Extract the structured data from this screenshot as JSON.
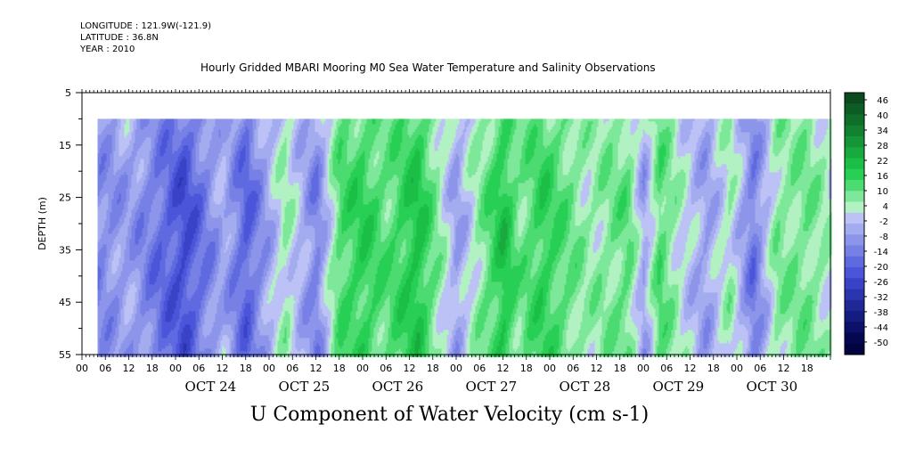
{
  "header": {
    "longitude": "LONGITUDE : 121.9W(-121.9)",
    "latitude": "LATITUDE : 36.8N",
    "year": "YEAR : 2010"
  },
  "chart_data": {
    "type": "heatmap",
    "title": "Hourly Gridded MBARI Mooring M0 Sea Water Temperature and Salinity Observations",
    "xlabel": "U Component of Water Velocity (cm s-1)",
    "ylabel": "DEPTH (m)",
    "ylim": [
      5,
      55
    ],
    "y_inverted": true,
    "y_ticks": [
      5,
      15,
      25,
      35,
      45,
      55
    ],
    "data_depth_range": [
      10,
      55
    ],
    "x_start": "2010-10-23 00:00",
    "x_end": "2010-10-30 23:00",
    "data_start": "2010-10-23 04:00",
    "x_hour_ticks": [
      "00",
      "06",
      "12",
      "18",
      "00",
      "06",
      "12",
      "18",
      "00",
      "06",
      "12",
      "18",
      "00",
      "06",
      "12",
      "18",
      "00",
      "06",
      "12",
      "18",
      "00",
      "06",
      "12",
      "18",
      "00",
      "06",
      "12",
      "18",
      "00",
      "06",
      "12",
      "18"
    ],
    "x_day_labels": [
      "OCT 24",
      "OCT 25",
      "OCT 26",
      "OCT 27",
      "OCT 28",
      "OCT 29",
      "OCT 30"
    ],
    "colorbar": {
      "labels": [
        "46",
        "40",
        "34",
        "28",
        "22",
        "16",
        "10",
        "4",
        "-2",
        "-8",
        "-14",
        "-20",
        "-26",
        "-32",
        "-38",
        "-44",
        "-50"
      ],
      "min": -50,
      "max": 52,
      "colors_high": [
        "#0a4a1e",
        "#0c5c24",
        "#0f6e2a",
        "#128231",
        "#159638",
        "#18aa3f",
        "#1cbf46",
        "#28cf55",
        "#4cdb70",
        "#7de89a",
        "#b2f2c2"
      ],
      "colors_low": [
        "#bcc2f5",
        "#a4acf0",
        "#8c95ea",
        "#7680e5",
        "#606ae0",
        "#4a55da",
        "#3a43c8",
        "#2c35b0",
        "#202898",
        "#151c80",
        "#0c1068",
        "#050850",
        "#020440"
      ]
    },
    "profile_times_h": [
      4,
      12,
      26,
      36,
      42,
      52,
      60,
      66,
      72,
      78,
      86,
      96,
      108,
      112,
      118,
      130,
      140,
      144,
      148,
      154,
      160,
      166,
      172,
      178,
      186,
      192
    ],
    "profile_u_cm_s": [
      -12,
      -8,
      -24,
      -6,
      -20,
      4,
      -14,
      12,
      16,
      10,
      20,
      -8,
      20,
      8,
      16,
      4,
      10,
      -8,
      12,
      0,
      -8,
      4,
      -16,
      6,
      8,
      2
    ],
    "depth_factor": {
      "depths": [
        10,
        25,
        40,
        55
      ],
      "multipliers": [
        0.7,
        1.0,
        1.0,
        0.9
      ]
    }
  }
}
